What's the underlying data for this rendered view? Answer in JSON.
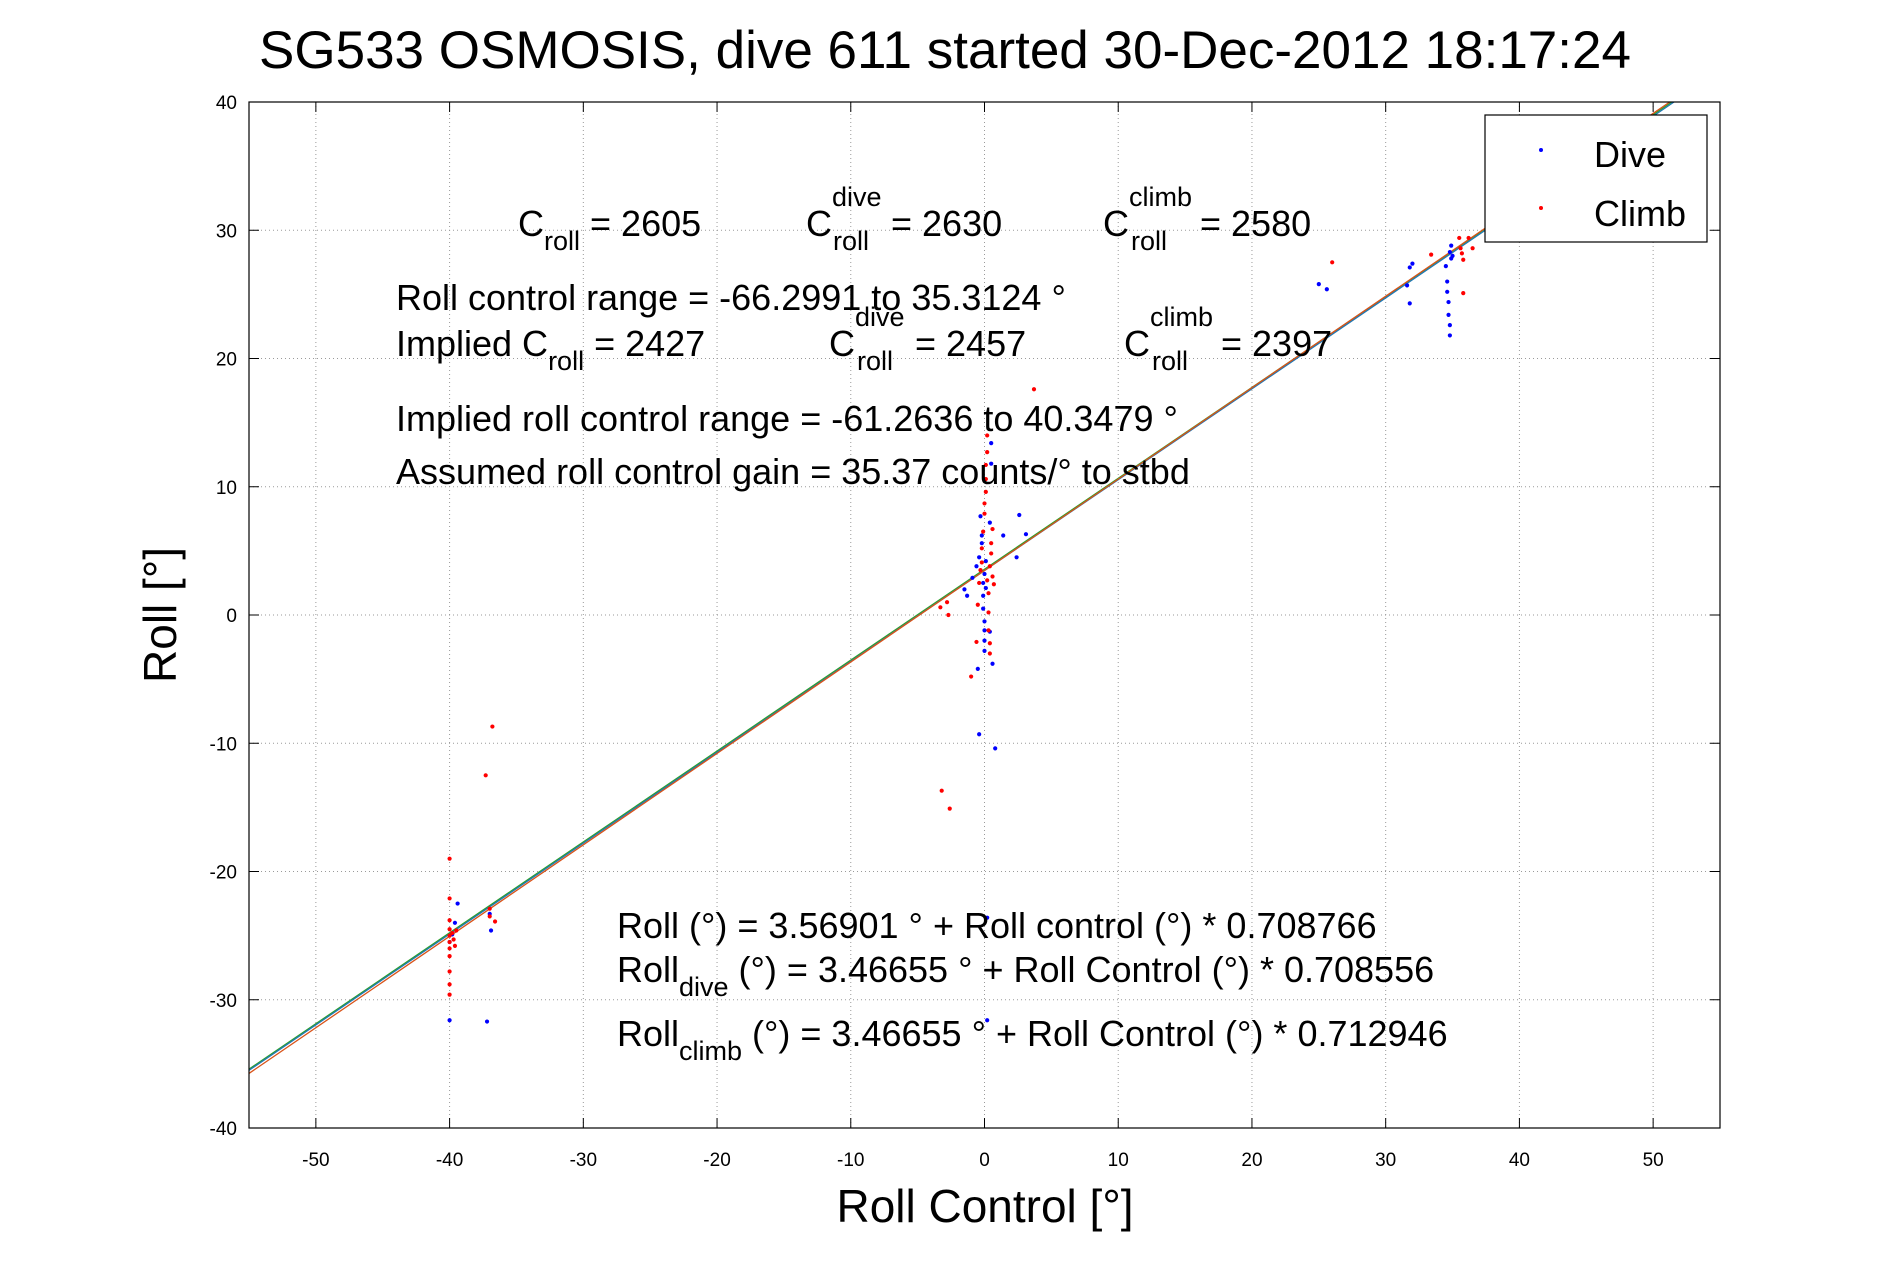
{
  "title": "SG533 OSMOSIS, dive 611 started 30-Dec-2012 18:17:24",
  "chart_data": {
    "type": "scatter",
    "title": "SG533 OSMOSIS, dive 611 started 30-Dec-2012 18:17:24",
    "xlabel": "Roll Control [°]",
    "ylabel": "Roll [°]",
    "xlim": [
      -55,
      55
    ],
    "ylim": [
      -40,
      40
    ],
    "xticks": [
      -50,
      -40,
      -30,
      -20,
      -10,
      0,
      10,
      20,
      30,
      40,
      50
    ],
    "yticks": [
      -40,
      -30,
      -20,
      -10,
      0,
      10,
      20,
      30,
      40
    ],
    "xtick_labels": [
      "-50",
      "-40",
      "-30",
      "-20",
      "-10",
      "0",
      "10",
      "20",
      "30",
      "40",
      "50"
    ],
    "ytick_labels": [
      "-40",
      "-30",
      "-20",
      "-10",
      "0",
      "10",
      "20",
      "30",
      "40"
    ],
    "grid": true,
    "legend": {
      "position": "top-right",
      "entries": [
        {
          "label": "Dive",
          "color": "#0000ff"
        },
        {
          "label": "Climb",
          "color": "#ff0000"
        }
      ]
    },
    "series": [
      {
        "name": "Dive",
        "color": "#0000ff",
        "points": [
          [
            -40.0,
            -31.6
          ],
          [
            -37.2,
            -31.7
          ],
          [
            -40.0,
            -25.5
          ],
          [
            -39.8,
            -24.9
          ],
          [
            -39.6,
            -24.0
          ],
          [
            -39.4,
            -22.5
          ],
          [
            -36.9,
            -24.6
          ],
          [
            -37.0,
            -23.3
          ],
          [
            -1.5,
            2.0
          ],
          [
            -1.3,
            1.5
          ],
          [
            -0.9,
            2.9
          ],
          [
            -0.6,
            3.8
          ],
          [
            -0.4,
            4.5
          ],
          [
            -0.3,
            7.7
          ],
          [
            -0.2,
            6.2
          ],
          [
            -0.2,
            5.6
          ],
          [
            -0.1,
            2.5
          ],
          [
            -0.1,
            1.5
          ],
          [
            -0.1,
            0.5
          ],
          [
            0.0,
            -0.5
          ],
          [
            0.0,
            -1.2
          ],
          [
            0.0,
            -2.0
          ],
          [
            0.0,
            -2.8
          ],
          [
            0.0,
            3.2
          ],
          [
            0.1,
            4.2
          ],
          [
            0.1,
            2.1
          ],
          [
            -0.5,
            -4.2
          ],
          [
            -0.4,
            -9.3
          ],
          [
            0.4,
            -1.3
          ],
          [
            0.6,
            -3.8
          ],
          [
            0.8,
            -10.4
          ],
          [
            0.5,
            13.4
          ],
          [
            0.5,
            11.8
          ],
          [
            0.4,
            7.2
          ],
          [
            1.4,
            6.2
          ],
          [
            2.4,
            4.5
          ],
          [
            2.6,
            7.8
          ],
          [
            3.1,
            6.3
          ],
          [
            0.2,
            -23.6
          ],
          [
            0.2,
            -31.6
          ],
          [
            25.0,
            25.8
          ],
          [
            25.6,
            25.4
          ],
          [
            31.6,
            25.7
          ],
          [
            31.8,
            24.3
          ],
          [
            31.8,
            27.1
          ],
          [
            32.0,
            27.4
          ],
          [
            34.5,
            27.2
          ],
          [
            34.6,
            26.0
          ],
          [
            34.6,
            25.2
          ],
          [
            34.7,
            24.4
          ],
          [
            34.7,
            23.4
          ],
          [
            34.8,
            22.6
          ],
          [
            34.8,
            21.8
          ],
          [
            34.8,
            28.3
          ],
          [
            34.9,
            28.8
          ],
          [
            34.9,
            27.8
          ],
          [
            35.0,
            28.0
          ]
        ]
      },
      {
        "name": "Climb",
        "color": "#ff0000",
        "points": [
          [
            -40.0,
            -19.0
          ],
          [
            -40.0,
            -22.1
          ],
          [
            -40.0,
            -23.8
          ],
          [
            -40.0,
            -24.5
          ],
          [
            -40.0,
            -25.0
          ],
          [
            -40.0,
            -25.5
          ],
          [
            -40.0,
            -26.0
          ],
          [
            -40.0,
            -26.6
          ],
          [
            -40.0,
            -27.8
          ],
          [
            -40.0,
            -28.8
          ],
          [
            -40.0,
            -29.6
          ],
          [
            -39.8,
            -24.8
          ],
          [
            -39.7,
            -25.3
          ],
          [
            -39.6,
            -25.8
          ],
          [
            -39.5,
            -24.6
          ],
          [
            -37.3,
            -12.5
          ],
          [
            -36.8,
            -8.7
          ],
          [
            -37.0,
            -22.9
          ],
          [
            -37.0,
            -23.5
          ],
          [
            -36.6,
            -23.9
          ],
          [
            -3.3,
            0.6
          ],
          [
            -2.8,
            1.0
          ],
          [
            -2.7,
            0.0
          ],
          [
            -3.2,
            -13.7
          ],
          [
            -2.6,
            -15.1
          ],
          [
            -1.0,
            -4.8
          ],
          [
            -0.6,
            -2.1
          ],
          [
            -0.5,
            0.8
          ],
          [
            -0.4,
            2.5
          ],
          [
            -0.3,
            3.5
          ],
          [
            -0.2,
            4.1
          ],
          [
            -0.2,
            5.2
          ],
          [
            -0.1,
            6.5
          ],
          [
            0.0,
            7.9
          ],
          [
            0.0,
            8.7
          ],
          [
            0.1,
            9.6
          ],
          [
            0.1,
            10.6
          ],
          [
            0.1,
            11.7
          ],
          [
            0.2,
            12.7
          ],
          [
            0.2,
            14.0
          ],
          [
            0.2,
            2.7
          ],
          [
            0.3,
            1.7
          ],
          [
            0.3,
            0.2
          ],
          [
            0.3,
            -1.2
          ],
          [
            0.4,
            -2.2
          ],
          [
            0.4,
            -3.0
          ],
          [
            0.4,
            3.8
          ],
          [
            0.5,
            4.8
          ],
          [
            0.5,
            5.6
          ],
          [
            0.6,
            6.7
          ],
          [
            0.6,
            3.0
          ],
          [
            0.7,
            2.4
          ],
          [
            3.7,
            17.6
          ],
          [
            26.0,
            27.5
          ],
          [
            33.4,
            28.1
          ],
          [
            35.5,
            29.4
          ],
          [
            35.6,
            28.6
          ],
          [
            35.7,
            28.2
          ],
          [
            35.8,
            27.7
          ],
          [
            35.8,
            25.1
          ],
          [
            36.2,
            29.4
          ],
          [
            36.5,
            28.6
          ]
        ]
      }
    ],
    "fit_lines": [
      {
        "intercept": 3.56901,
        "slope": 0.708766,
        "color": "#2ca02c"
      },
      {
        "intercept": 3.46655,
        "slope": 0.708556,
        "color": "#1f77b4"
      },
      {
        "intercept": 3.46655,
        "slope": 0.712946,
        "color": "#d95319"
      }
    ],
    "annotations": {
      "c_roll": {
        "base": "C",
        "sub": "roll",
        "tail": " = 2605"
      },
      "c_roll_dive": {
        "base": "C",
        "sup": "dive",
        "sub": "roll",
        "tail": " = 2630"
      },
      "c_roll_climb": {
        "base": "C",
        "sup": "climb",
        "sub": "roll",
        "tail": " = 2580"
      },
      "control_range": "Roll control range = -66.2991 to 35.3124 °",
      "implied_prefix": "Implied C",
      "implied_sub": "roll",
      "implied_tail": " = 2427",
      "implied_dive": {
        "base": "C",
        "sup": "dive",
        "sub": "roll",
        "tail": " = 2457"
      },
      "implied_climb": {
        "base": "C",
        "sup": "climb",
        "sub": "roll",
        "tail": " = 2397"
      },
      "implied_range": "Implied roll control range = -61.2636 to 40.3479 °",
      "gain": "Assumed roll control gain = 35.37 counts/° to stbd",
      "eq_all": "Roll (°) = 3.56901 ° + Roll control (°) * 0.708766",
      "eq_dive": {
        "base": "Roll",
        "sub": "dive",
        "tail": " (°) = 3.46655 ° + Roll Control (°) * 0.708556"
      },
      "eq_climb": {
        "base": "Roll",
        "sub": "climb",
        "tail": " (°) = 3.46655 ° + Roll Control (°) * 0.712946"
      }
    }
  }
}
